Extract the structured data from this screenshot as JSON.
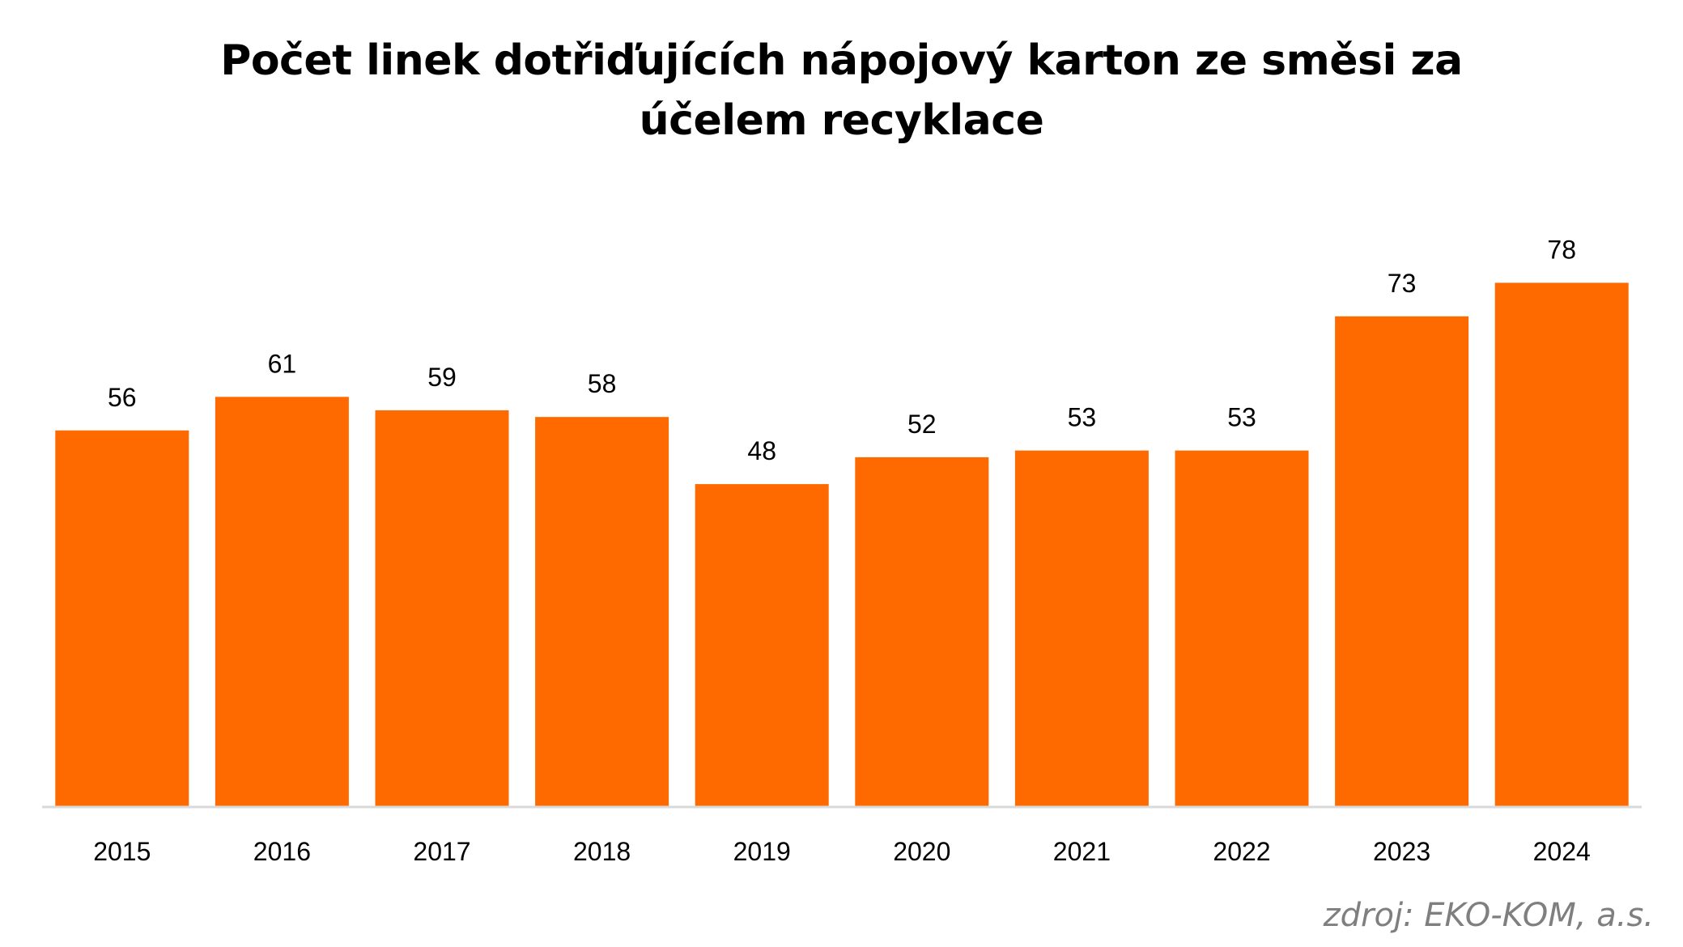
{
  "chart_data": {
    "type": "bar",
    "title_line1": "Počet linek dotřiďujících nápojový karton ze směsi za",
    "title_line2": "účelem recyklace",
    "categories": [
      "2015",
      "2016",
      "2017",
      "2018",
      "2019",
      "2020",
      "2021",
      "2022",
      "2023",
      "2024"
    ],
    "values": [
      56,
      61,
      59,
      58,
      48,
      52,
      53,
      53,
      73,
      78
    ],
    "xlabel": "",
    "ylabel": "",
    "ylim": [
      0,
      120
    ],
    "grid": false,
    "bar_color": "#FF6A00",
    "axis_color": "#D9D9D9",
    "source": "zdroj: EKO-KOM, a.s."
  }
}
